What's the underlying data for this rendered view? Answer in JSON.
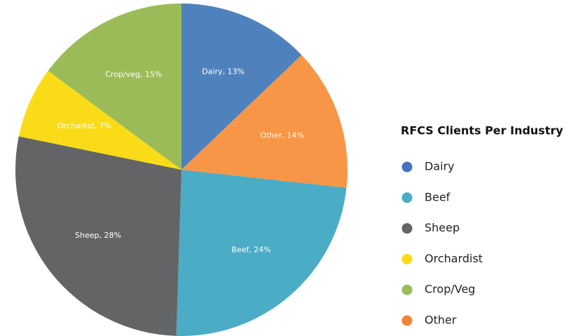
{
  "chart_data": {
    "type": "pie",
    "categories": [
      "Dairy",
      "Other",
      "Beef",
      "Sheep",
      "Orchadist",
      "Crop/veg"
    ],
    "values": [
      13,
      14,
      24,
      28,
      7,
      15
    ],
    "value_labels": [
      "Dairy, 13%",
      "Other, 14%",
      "Beef, 24%",
      "Sheep, 28%",
      "Orchadist, 7%",
      "Crop/veg, 15%"
    ],
    "colors": [
      "#4f81bd",
      "#f79646",
      "#4bacc6",
      "#636466",
      "#f9dc17",
      "#9bbb59"
    ],
    "legend_title": "RFCS Clients Per Industry",
    "legend": [
      {
        "name": "Dairy",
        "color": "#4472c4"
      },
      {
        "name": "Beef",
        "color": "#4bacc6"
      },
      {
        "name": "Sheep",
        "color": "#636466"
      },
      {
        "name": "Orchardist",
        "color": "#f9dc17"
      },
      {
        "name": "Crop/Veg",
        "color": "#9bbb59"
      },
      {
        "name": "Other",
        "color": "#f0853a"
      }
    ],
    "legend_position": "right"
  }
}
